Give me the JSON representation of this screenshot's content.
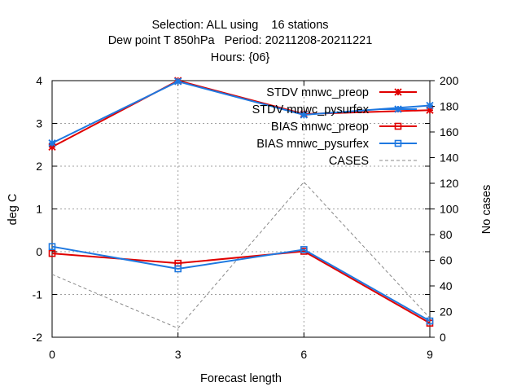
{
  "chart_data": {
    "type": "line",
    "title": [
      "Selection: ALL using    16 stations",
      "Dew point T 850hPa   Period: 20211208-20211221",
      "Hours: {06}"
    ],
    "xlabel": "Forecast length",
    "ylabel": "deg C",
    "y2label": "No cases",
    "x": [
      0,
      3,
      6,
      9
    ],
    "xlim": [
      0,
      9
    ],
    "xticks": [
      "0",
      "3",
      "6",
      "9"
    ],
    "ylim": [
      -2,
      4
    ],
    "yticks": [
      "-2",
      "-1",
      "0",
      "1",
      "2",
      "3",
      "4"
    ],
    "y2lim": [
      0,
      200
    ],
    "y2ticks": [
      "0",
      "20",
      "40",
      "60",
      "80",
      "100",
      "120",
      "140",
      "160",
      "180",
      "200"
    ],
    "grid": true,
    "legend_position": "top-right",
    "series": [
      {
        "name": "STDV mnwc_preop",
        "axis": "y1",
        "color": "#e00000",
        "marker": "star",
        "dash": false,
        "values": [
          2.45,
          4.0,
          3.22,
          3.31
        ]
      },
      {
        "name": "STDV mnwc_pysurfex",
        "axis": "y1",
        "color": "#1e78e0",
        "marker": "star",
        "dash": false,
        "values": [
          2.54,
          3.98,
          3.2,
          3.42
        ]
      },
      {
        "name": "BIAS mnwc_preop",
        "axis": "y1",
        "color": "#e00000",
        "marker": "square",
        "dash": false,
        "values": [
          -0.04,
          -0.27,
          0.01,
          -1.67
        ]
      },
      {
        "name": "BIAS mnwc_pysurfex",
        "axis": "y1",
        "color": "#1e78e0",
        "marker": "square",
        "dash": false,
        "values": [
          0.12,
          -0.4,
          0.05,
          -1.62
        ]
      },
      {
        "name": "CASES",
        "axis": "y2",
        "color": "#888888",
        "marker": "none",
        "dash": true,
        "values": [
          49,
          7,
          121,
          15
        ]
      }
    ]
  }
}
